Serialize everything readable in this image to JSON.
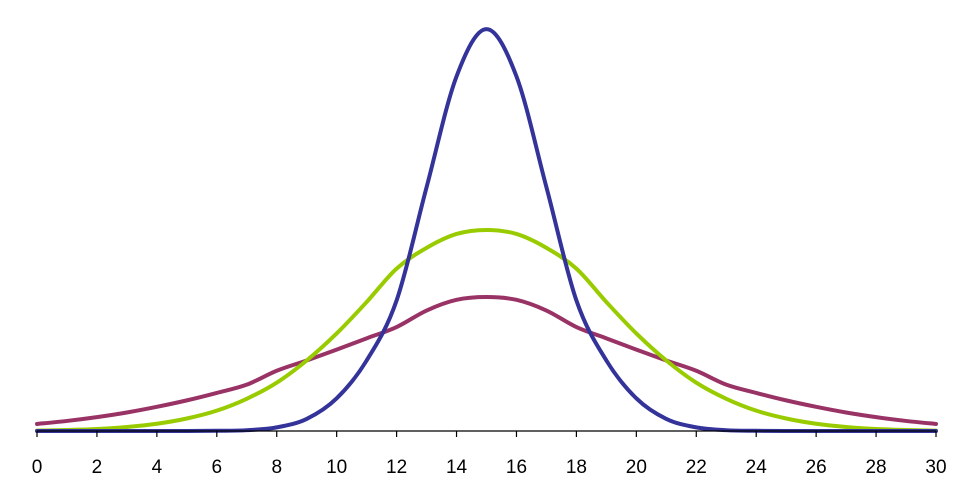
{
  "chart_data": {
    "type": "line",
    "title": "",
    "xlabel": "",
    "ylabel": "",
    "xlim": [
      0,
      30
    ],
    "ylim": [
      0,
      0.205
    ],
    "grid": false,
    "legend": "none",
    "x_ticks": [
      "0",
      "2",
      "4",
      "6",
      "8",
      "10",
      "12",
      "14",
      "16",
      "18",
      "20",
      "22",
      "24",
      "26",
      "28",
      "30"
    ],
    "x": [
      0,
      1,
      2,
      3,
      4,
      5,
      6,
      7,
      8,
      9,
      10,
      11,
      12,
      13,
      14,
      15,
      16,
      17,
      18,
      19,
      20,
      21,
      22,
      23,
      24,
      25,
      26,
      27,
      28,
      29,
      30
    ],
    "series": [
      {
        "color": "#333399",
        "values": [
          0.0,
          0.0,
          0.0,
          0.0,
          0.0,
          0.0,
          0.0001,
          0.0004,
          0.0018,
          0.006,
          0.0162,
          0.035,
          0.0648,
          0.121,
          0.176,
          0.1995,
          0.176,
          0.121,
          0.0648,
          0.035,
          0.0162,
          0.006,
          0.0018,
          0.0004,
          0.0001,
          0.0,
          0.0,
          0.0,
          0.0,
          0.0,
          0.0
        ]
      },
      {
        "color": "#99cc00",
        "values": [
          0.0002,
          0.0005,
          0.001,
          0.002,
          0.0036,
          0.0062,
          0.0101,
          0.016,
          0.024,
          0.035,
          0.0484,
          0.064,
          0.0806,
          0.0909,
          0.0978,
          0.0998,
          0.0978,
          0.0909,
          0.0806,
          0.064,
          0.0484,
          0.035,
          0.024,
          0.016,
          0.0101,
          0.0062,
          0.0036,
          0.002,
          0.001,
          0.0005,
          0.0002
        ]
      },
      {
        "color": "#993366",
        "values": [
          0.0035,
          0.005,
          0.0069,
          0.0092,
          0.012,
          0.0152,
          0.0189,
          0.023,
          0.0299,
          0.035,
          0.0404,
          0.046,
          0.0516,
          0.0598,
          0.0651,
          0.0665,
          0.0651,
          0.0598,
          0.0516,
          0.046,
          0.0404,
          0.035,
          0.0299,
          0.023,
          0.0189,
          0.0152,
          0.012,
          0.0092,
          0.0069,
          0.005,
          0.0035
        ]
      }
    ]
  }
}
